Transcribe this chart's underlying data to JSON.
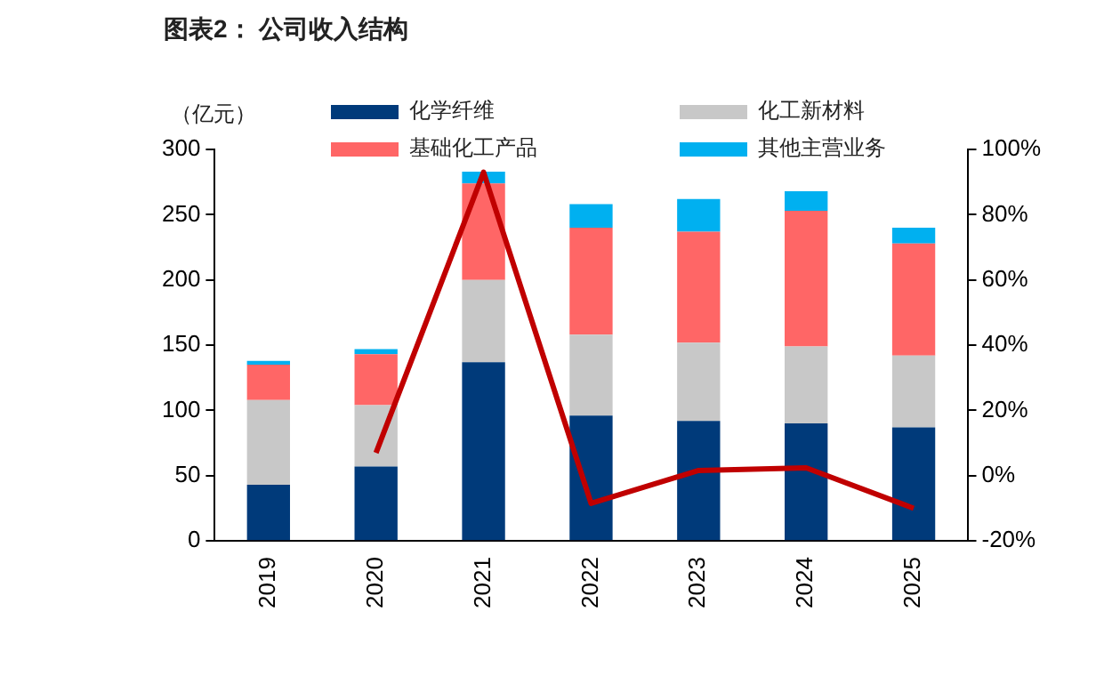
{
  "chart_data": {
    "type": "bar",
    "title": "图表2： 公司收入结构",
    "ylabel": "（亿元）",
    "stacked": true,
    "legend": "top",
    "grid": false,
    "marker": "none",
    "categories": [
      "2019",
      "2020",
      "2021",
      "2022",
      "2023",
      "2024",
      "2025"
    ],
    "series": [
      {
        "name": "化学纤维",
        "color": "#003a7a",
        "values": [
          43,
          57,
          137,
          96,
          92,
          90,
          87
        ]
      },
      {
        "name": "化工新材料",
        "color": "#c8c8c8",
        "values": [
          65,
          47,
          63,
          62,
          60,
          59,
          55
        ]
      },
      {
        "name": "基础化工产品",
        "color": "#ff6666",
        "values": [
          27,
          39,
          74,
          82,
          85,
          104,
          86
        ]
      },
      {
        "name": "其他主营业务",
        "color": "#00b0f0",
        "values": [
          3,
          4,
          9,
          18,
          25,
          15,
          12
        ]
      },
      {
        "type": "line",
        "axis": "y2",
        "color": "#c00000",
        "line_style": "solid",
        "values": [
          null,
          7,
          93,
          -8.5,
          1.6,
          2.4,
          -10
        ]
      }
    ],
    "ylim": [
      0,
      300
    ],
    "yticks": [
      0,
      50,
      100,
      150,
      200,
      250,
      300
    ],
    "y2lim": [
      -20,
      100
    ],
    "y2ticks": [
      {
        "value": -20,
        "label": "-20%"
      },
      {
        "value": 0,
        "label": "0%"
      },
      {
        "value": 20,
        "label": "20%"
      },
      {
        "value": 40,
        "label": "40%"
      },
      {
        "value": 60,
        "label": "60%"
      },
      {
        "value": 80,
        "label": "80%"
      },
      {
        "value": 100,
        "label": "100%"
      }
    ]
  }
}
